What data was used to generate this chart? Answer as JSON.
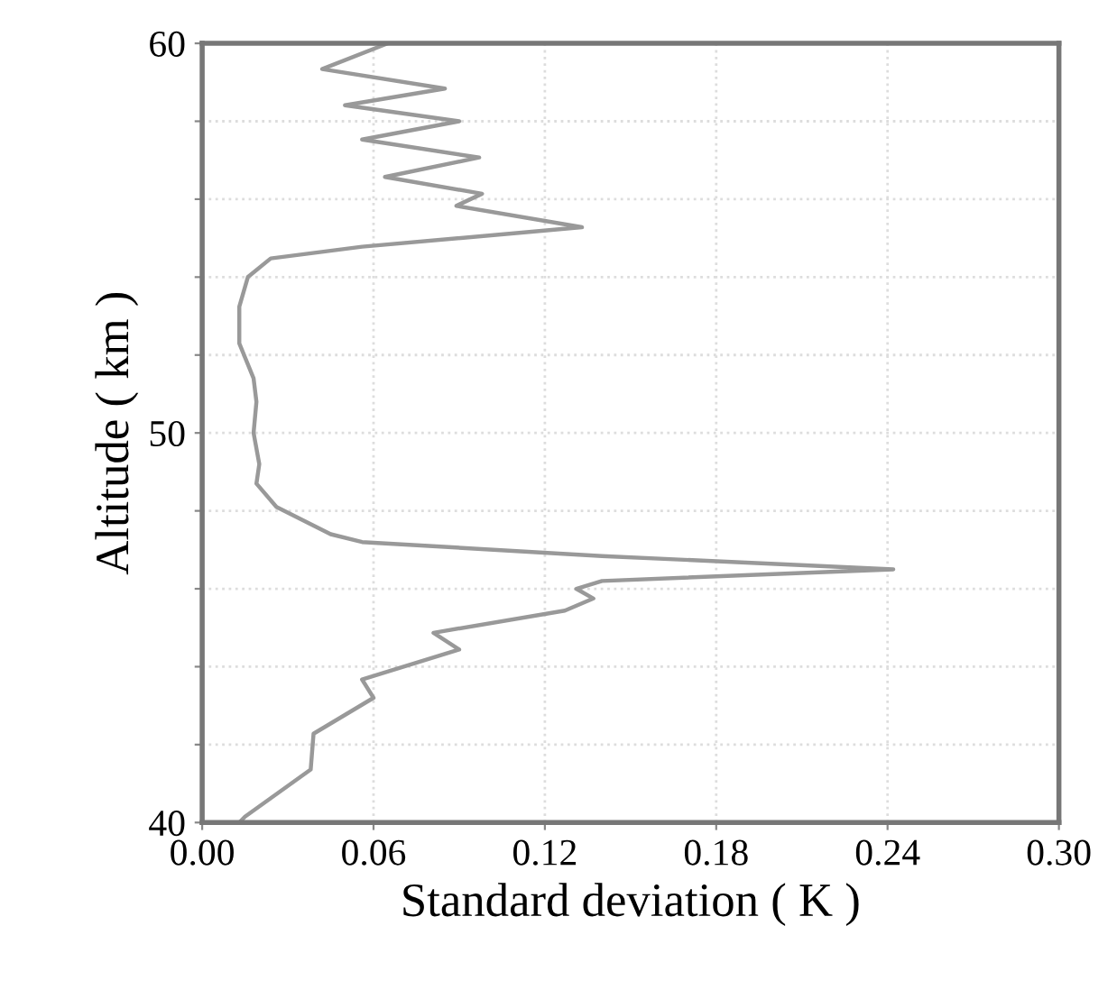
{
  "chart_data": {
    "type": "line",
    "xlabel": "Standard deviation ( K )",
    "ylabel": "Altitude ( km )",
    "xlim": [
      0,
      0.3
    ],
    "ylim": [
      40,
      60
    ],
    "xticks": [
      {
        "value": 0,
        "label": "0.00"
      },
      {
        "value": 0.06,
        "label": "0.06"
      },
      {
        "value": 0.12,
        "label": "0.12"
      },
      {
        "value": 0.18,
        "label": "0.18"
      },
      {
        "value": 0.24,
        "label": "0.24"
      },
      {
        "value": 0.3,
        "label": "0.30"
      }
    ],
    "yticks": [
      40,
      {
        "value": 42,
        "label": null
      },
      {
        "value": 44,
        "label": null
      },
      {
        "value": 46,
        "label": null
      },
      {
        "value": 48,
        "label": null
      },
      50,
      {
        "value": 52,
        "label": null
      },
      {
        "value": 54,
        "label": null
      },
      {
        "value": 56,
        "label": null
      },
      {
        "value": 58,
        "label": null
      },
      60
    ],
    "grid": true,
    "marker": "none",
    "line_style": "solid",
    "series": [
      {
        "color": "#999999",
        "x": [
          0.013,
          0.015,
          0.038,
          0.039,
          0.06,
          0.056,
          0.09,
          0.081,
          0.127,
          0.137,
          0.131,
          0.14,
          0.242,
          0.14,
          0.056,
          0.045,
          0.026,
          0.019,
          0.02,
          0.018,
          0.019,
          0.018,
          0.013,
          0.013,
          0.016,
          0.024,
          0.056,
          0.133,
          0.089,
          0.098,
          0.064,
          0.097,
          0.056,
          0.09,
          0.05,
          0.085,
          0.042,
          0.065
        ],
        "values": [
          40.0,
          40.15,
          41.36,
          42.28,
          43.2,
          43.67,
          44.44,
          44.87,
          45.44,
          45.75,
          46.0,
          46.2,
          46.5,
          46.84,
          47.2,
          47.4,
          48.1,
          48.7,
          49.2,
          50.0,
          50.8,
          51.4,
          52.3,
          53.24,
          54.0,
          54.48,
          54.78,
          55.28,
          55.83,
          56.14,
          56.57,
          57.07,
          57.53,
          58.0,
          58.41,
          58.84,
          59.34,
          60.0
        ]
      }
    ]
  }
}
